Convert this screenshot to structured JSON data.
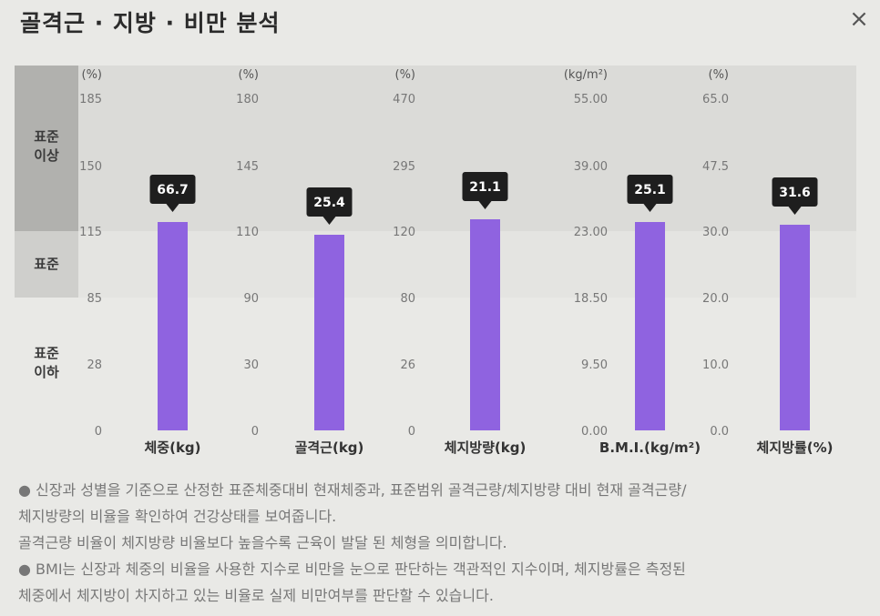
{
  "header": {
    "title": "골격근 · 지방 · 비만 분석",
    "close_icon": "×"
  },
  "zones": {
    "high": "표준\n이상",
    "standard": "표준",
    "low": "표준\n이하"
  },
  "colors": {
    "bar": "#8f63e0",
    "callout_bg": "#1e1e1e",
    "callout_text": "#ffffff"
  },
  "chart_data": {
    "type": "bar",
    "panels": [
      {
        "label": "체중(kg)",
        "unit": "(%)",
        "ticks": [
          "185",
          "150",
          "115",
          "85",
          "28",
          "0"
        ],
        "value": 66.7,
        "value_label": "66.7",
        "bar_level": "115% (standard upper bound)"
      },
      {
        "label": "골격근(kg)",
        "unit": "(%)",
        "ticks": [
          "180",
          "145",
          "110",
          "90",
          "30",
          "0"
        ],
        "value": 25.4,
        "value_label": "25.4",
        "bar_level": "~105% (standard zone)"
      },
      {
        "label": "체지방량(kg)",
        "unit": "(%)",
        "ticks": [
          "470",
          "295",
          "120",
          "80",
          "26",
          "0"
        ],
        "value": 21.1,
        "value_label": "21.1",
        "bar_level": "~122% (just above standard)"
      },
      {
        "label": "B.M.I.(kg/m²)",
        "unit": "(kg/m²)",
        "ticks": [
          "55.00",
          "39.00",
          "23.00",
          "18.50",
          "9.50",
          "0.00"
        ],
        "value": 25.1,
        "value_label": "25.1",
        "bar_level": "~23.0 (standard upper bound)"
      },
      {
        "label": "체지방률(%)",
        "unit": "(%)",
        "ticks": [
          "65.0",
          "47.5",
          "30.0",
          "20.0",
          "10.0",
          "0.0"
        ],
        "value": 31.6,
        "value_label": "31.6",
        "bar_level": "~30 (standard upper bound)"
      }
    ]
  },
  "notes": {
    "line1": "● 신장과 성별을 기준으로 산정한 표준체중대비 현재체중과, 표준범위 골격근량/체지방량 대비 현재 골격근량/",
    "line2": "체지방량의 비율을 확인하여 건강상태를 보여줍니다.",
    "line3": "골격근량 비율이 체지방량 비율보다 높을수록 근육이 발달 된 체형을 의미합니다.",
    "line4": "● BMI는 신장과 체중의 비율을 사용한 지수로 비만을 눈으로 판단하는 객관적인 지수이며, 체지방률은 측정된",
    "line5": "체중에서 체지방이 차지하고 있는 비율로 실제 비만여부를 판단할 수 있습니다."
  }
}
